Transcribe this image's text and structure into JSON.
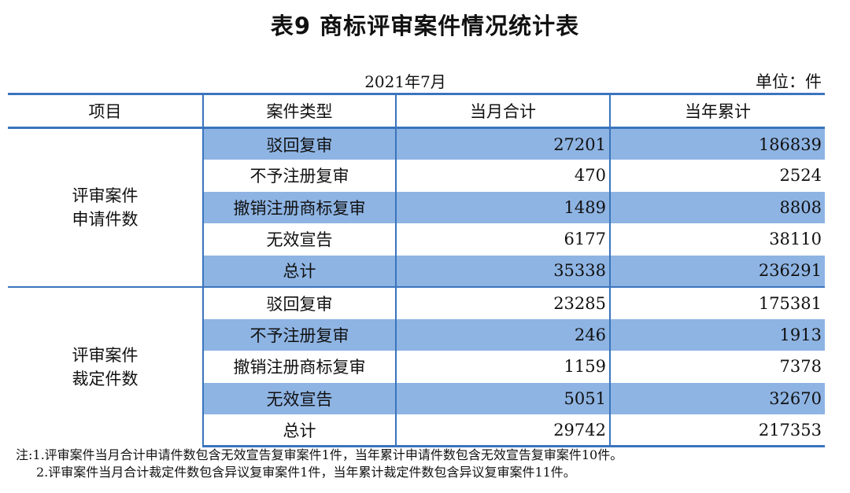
{
  "title": "表9 商标评审案件情况统计表",
  "date": "2021年7月",
  "unit": "单位：件",
  "headers": [
    "项目",
    "案件类型",
    "当月合计",
    "当年累计"
  ],
  "groups": [
    {
      "category_lines": [
        "评审案件",
        "申请件数"
      ],
      "rows": [
        {
          "type": "驳回复审",
          "month": "27201",
          "year": "186839"
        },
        {
          "type": "不予注册复审",
          "month": "470",
          "year": "2524"
        },
        {
          "type": "撤销注册商标复审",
          "month": "1489",
          "year": "8808"
        },
        {
          "type": "无效宣告",
          "month": "6177",
          "year": "38110"
        },
        {
          "type": "总计",
          "month": "35338",
          "year": "236291"
        }
      ]
    },
    {
      "category_lines": [
        "评审案件",
        "裁定件数"
      ],
      "rows": [
        {
          "type": "驳回复审",
          "month": "23285",
          "year": "175381"
        },
        {
          "type": "不予注册复审",
          "month": "246",
          "year": "1913"
        },
        {
          "type": "撤销注册商标复审",
          "month": "1159",
          "year": "7378"
        },
        {
          "type": "无效宣告",
          "month": "5051",
          "year": "32670"
        },
        {
          "type": "总计",
          "month": "29742",
          "year": "217353"
        }
      ]
    }
  ],
  "notes": [
    "注:1.评审案件当月合计申请件数包含无效宣告复审案件1件，当年累计申请件数包含无效宣告复审案件10件。",
    "2.评审案件当月合计裁定件数包含异议复审案件1件，当年累计裁定件数包含异议复审案件11件。"
  ],
  "colors": {
    "border": "#3a74bd",
    "row_shade": "#8eb4e3"
  }
}
